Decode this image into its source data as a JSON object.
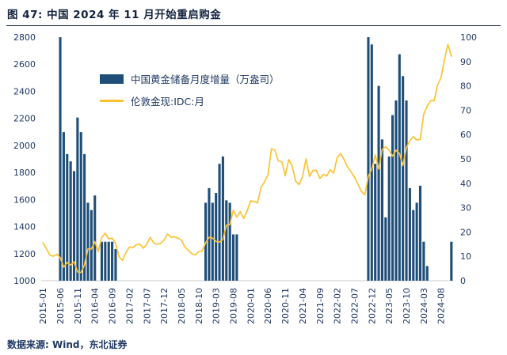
{
  "header": {
    "title": "图 47: 中国 2024 年 11 月开始重启购金"
  },
  "footer": {
    "source": "数据来源: Wind，东北证券"
  },
  "legend": {
    "bars": "中国黄金储备月度增量（万盎司）",
    "line": "伦敦金现:IDC:月"
  },
  "chart_data": {
    "type": "bar+line",
    "title": "图 47: 中国 2024 年 11 月开始重启购金",
    "start_month": "2015-01",
    "months_count": 119,
    "grid": "off",
    "legend_position": "top-left-inside",
    "colors": {
      "bar": "#1f4e79",
      "line": "#fdc233"
    },
    "x_tick_labels": [
      "2015-01",
      "2015-06",
      "2015-11",
      "2016-04",
      "2016-09",
      "2017-02",
      "2017-07",
      "2017-12",
      "2018-05",
      "2018-10",
      "2019-03",
      "2019-08",
      "2020-01",
      "2020-06",
      "2020-11",
      "2021-04",
      "2021-09",
      "2022-02",
      "2022-07",
      "2022-12",
      "2023-05",
      "2023-10",
      "2024-03",
      "2024-08"
    ],
    "left_axis": {
      "min": 1000,
      "max": 2800,
      "step": 200,
      "series": "伦敦金现:IDC:月"
    },
    "right_axis": {
      "min": 0,
      "max": 100,
      "step": 10,
      "series": "中国黄金储备月度增量（万盎司）"
    },
    "bars_right_axis": {
      "2015-06": 100,
      "2015-07": 61,
      "2015-08": 52,
      "2015-09": 49,
      "2015-10": 45,
      "2015-11": 67,
      "2015-12": 61,
      "2016-01": 52,
      "2016-02": 32,
      "2016-03": 29,
      "2016-04": 35,
      "2016-06": 16,
      "2016-07": 16,
      "2016-08": 16,
      "2016-09": 16,
      "2016-10": 13,
      "2018-12": 32,
      "2019-01": 38,
      "2019-02": 32,
      "2019-03": 36,
      "2019-04": 48,
      "2019-05": 51,
      "2019-06": 33,
      "2019-07": 32,
      "2019-08": 19,
      "2019-09": 19,
      "2022-11": 100,
      "2022-12": 97,
      "2023-01": 48,
      "2023-02": 80,
      "2023-03": 58,
      "2023-04": 26,
      "2023-05": 51,
      "2023-06": 68,
      "2023-07": 74,
      "2023-08": 93,
      "2023-09": 84,
      "2023-10": 74,
      "2023-11": 38,
      "2023-12": 29,
      "2024-01": 32,
      "2024-02": 39,
      "2024-03": 16,
      "2024-04": 6,
      "2024-11": 16
    },
    "line_left_axis": [
      1280,
      1235,
      1190,
      1180,
      1195,
      1170,
      1100,
      1135,
      1115,
      1140,
      1065,
      1060,
      1115,
      1235,
      1235,
      1290,
      1215,
      1320,
      1350,
      1310,
      1315,
      1275,
      1175,
      1150,
      1210,
      1250,
      1245,
      1265,
      1270,
      1240,
      1270,
      1320,
      1280,
      1270,
      1275,
      1300,
      1345,
      1320,
      1325,
      1315,
      1300,
      1250,
      1225,
      1200,
      1190,
      1215,
      1220,
      1280,
      1320,
      1315,
      1290,
      1285,
      1305,
      1410,
      1415,
      1520,
      1470,
      1510,
      1460,
      1515,
      1590,
      1585,
      1575,
      1690,
      1730,
      1780,
      1975,
      1965,
      1885,
      1880,
      1775,
      1895,
      1850,
      1735,
      1710,
      1770,
      1900,
      1770,
      1815,
      1815,
      1755,
      1785,
      1775,
      1820,
      1795,
      1910,
      1940,
      1895,
      1840,
      1805,
      1765,
      1715,
      1660,
      1635,
      1770,
      1825,
      1930,
      1825,
      1970,
      1990,
      1965,
      1920,
      1965,
      1940,
      1850,
      1985,
      2035,
      2065,
      2040,
      2045,
      2230,
      2290,
      2330,
      2330,
      2445,
      2500,
      2635,
      2745,
      2660
    ]
  }
}
